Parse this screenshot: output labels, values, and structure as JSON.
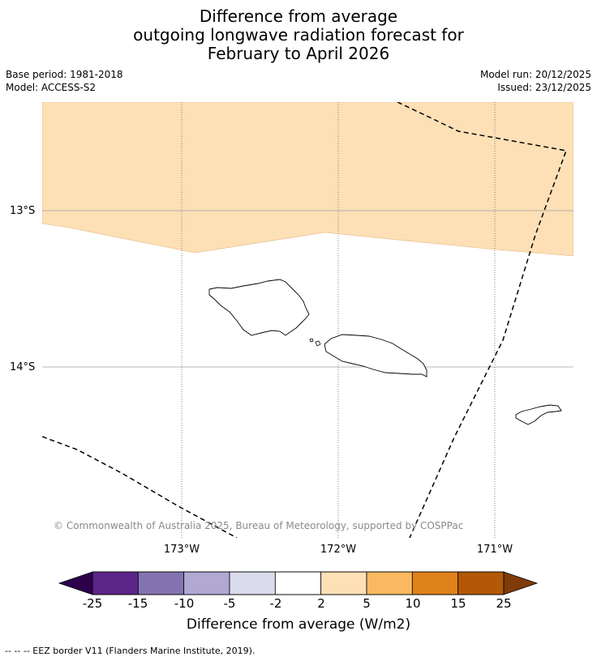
{
  "title": {
    "line1": "Difference from average",
    "line2": "outgoing longwave radiation forecast for",
    "line3": "February to April 2026"
  },
  "meta": {
    "base_period": "Base period: 1981-2018",
    "model": "Model: ACCESS-S2",
    "model_run": "Model run: 20/12/2025",
    "issued": "Issued: 23/12/2025"
  },
  "map": {
    "lat_labels": [
      "13°S",
      "14°S"
    ],
    "lon_labels": [
      "173°W",
      "172°W",
      "171°W"
    ],
    "copyright": "© Commonwealth of Australia 2025, Bureau of Meteorology, supported by COSPPac",
    "islands": [
      "Savai'i",
      "Upolu",
      "Tutuila"
    ],
    "anomaly_region_category": "2 to 5"
  },
  "colorbar": {
    "ticks": [
      "-25",
      "-15",
      "-10",
      "-5",
      "-2",
      "2",
      "5",
      "10",
      "15",
      "25"
    ],
    "colors": [
      "#5c2589",
      "#8473b1",
      "#b1a9d4",
      "#dadbec",
      "#ffffff",
      "#fde0b6",
      "#fbb861",
      "#e0821a",
      "#b35806"
    ],
    "under_color": "#2d004b",
    "over_color": "#7f3b08",
    "label": "Difference from average (W/m2)"
  },
  "legend": {
    "eez": "--  --  -- EEZ border V11 (Flanders Marine Institute, 2019)."
  }
}
